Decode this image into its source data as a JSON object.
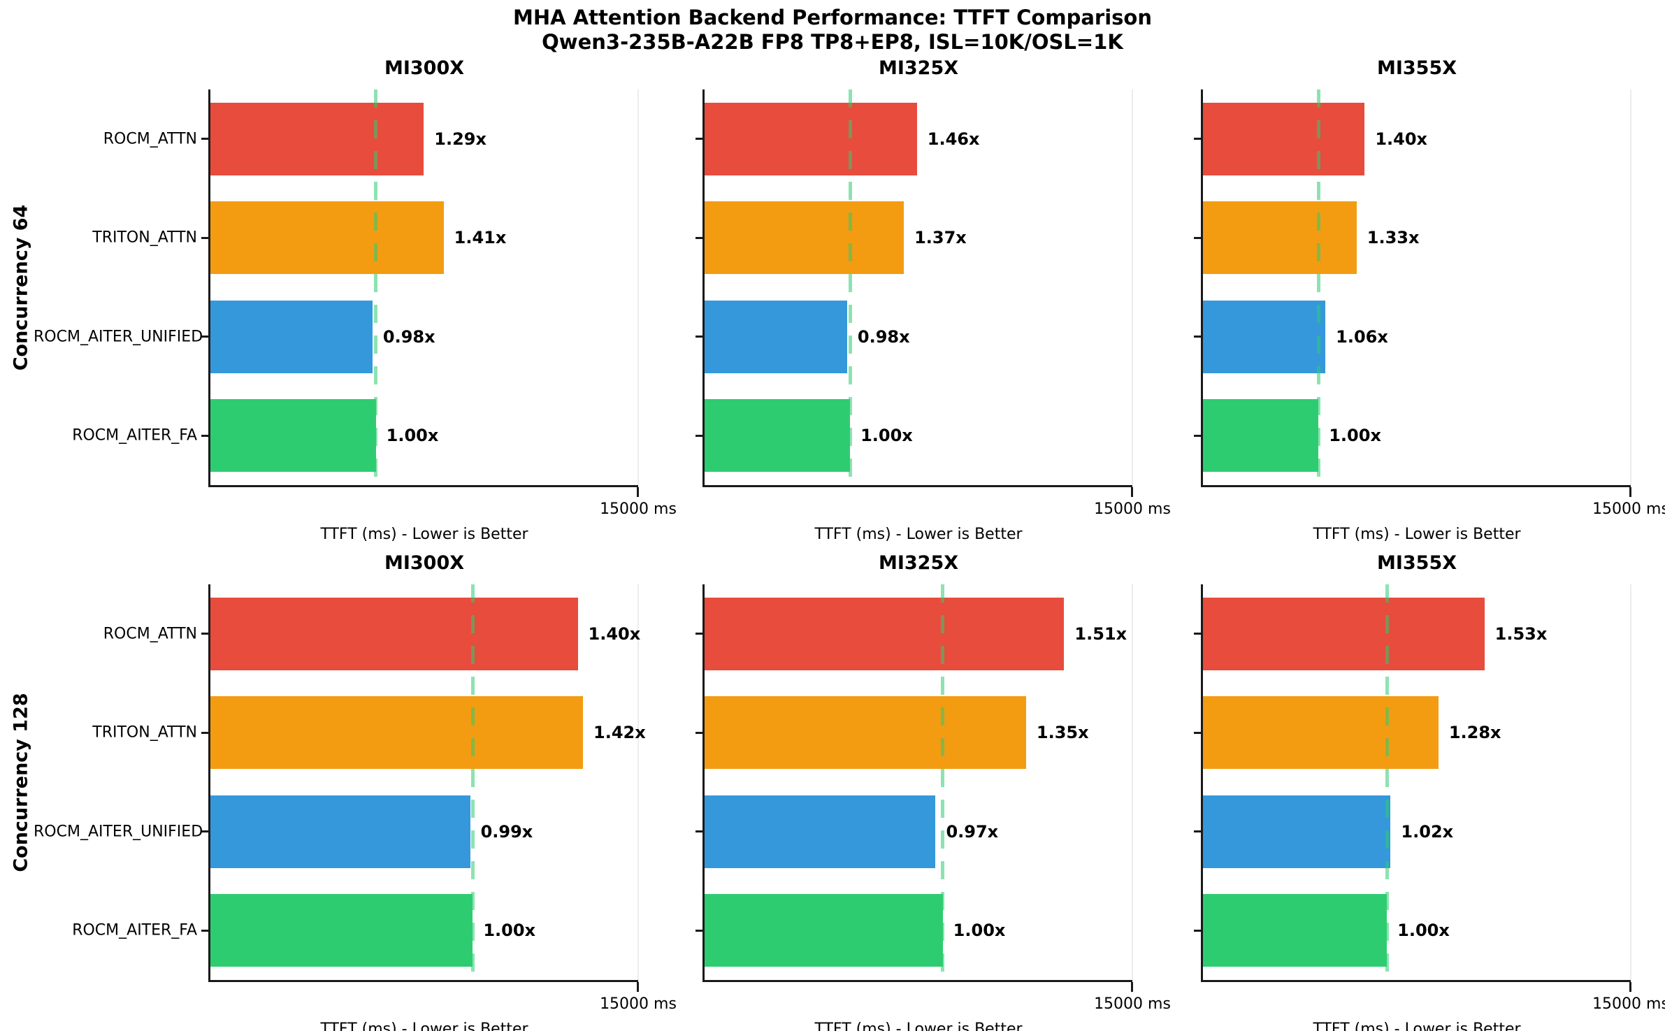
{
  "title": {
    "line1": "MHA Attention Backend Performance: TTFT Comparison",
    "line2": "Qwen3-235B-A22B FP8 TP8+EP8, ISL=10K/OSL=1K"
  },
  "colors": {
    "rocm_attn": "#e74c3c",
    "triton_attn": "#f39c12",
    "rocm_aiter_unified": "#3498db",
    "rocm_aiter_fa": "#2ecc71",
    "baseline_dash": "rgba(46,204,113,0.55)",
    "spine": "#1a1a1a"
  },
  "chart_data": {
    "type": "bar",
    "orientation": "horizontal",
    "grid": "off",
    "legend": "none",
    "x_axis": {
      "label": "TTFT (ms) - Lower is Better",
      "max_tick_label": "15000 ms",
      "range_ms": [
        0,
        15000
      ]
    },
    "categories": [
      "ROCM_ATTN",
      "TRITON_ATTN",
      "ROCM_AITER_UNIFIED",
      "ROCM_AITER_FA"
    ],
    "bar_colors": [
      "#e74c3c",
      "#f39c12",
      "#3498db",
      "#2ecc71"
    ],
    "note": "Bar lengths are TTFT in ms; dashed line marks the ROCM_AITER_FA baseline; printed labels are ratios vs baseline",
    "rows": [
      {
        "row_label": "Concurrency 64",
        "subplots": [
          {
            "title": "MI300X",
            "baseline_ttft_ms_est": 5800,
            "ratios": [
              1.29,
              1.41,
              0.98,
              1.0
            ],
            "ratio_labels": [
              "1.29x",
              "1.41x",
              "0.98x",
              "1.00x"
            ]
          },
          {
            "title": "MI325X",
            "baseline_ttft_ms_est": 5100,
            "ratios": [
              1.46,
              1.37,
              0.98,
              1.0
            ],
            "ratio_labels": [
              "1.46x",
              "1.37x",
              "0.98x",
              "1.00x"
            ]
          },
          {
            "title": "MI355X",
            "baseline_ttft_ms_est": 4050,
            "ratios": [
              1.4,
              1.33,
              1.06,
              1.0
            ],
            "ratio_labels": [
              "1.40x",
              "1.33x",
              "1.06x",
              "1.00x"
            ]
          }
        ]
      },
      {
        "row_label": "Concurrency 128",
        "subplots": [
          {
            "title": "MI300X",
            "baseline_ttft_ms_est": 9200,
            "ratios": [
              1.4,
              1.42,
              0.99,
              1.0
            ],
            "ratio_labels": [
              "1.40x",
              "1.42x",
              "0.99x",
              "1.00x"
            ]
          },
          {
            "title": "MI325X",
            "baseline_ttft_ms_est": 8350,
            "ratios": [
              1.51,
              1.35,
              0.97,
              1.0
            ],
            "ratio_labels": [
              "1.51x",
              "1.35x",
              "0.97x",
              "1.00x"
            ]
          },
          {
            "title": "MI355X",
            "baseline_ttft_ms_est": 6450,
            "ratios": [
              1.53,
              1.28,
              1.02,
              1.0
            ],
            "ratio_labels": [
              "1.53x",
              "1.28x",
              "1.02x",
              "1.00x"
            ]
          }
        ]
      }
    ]
  }
}
